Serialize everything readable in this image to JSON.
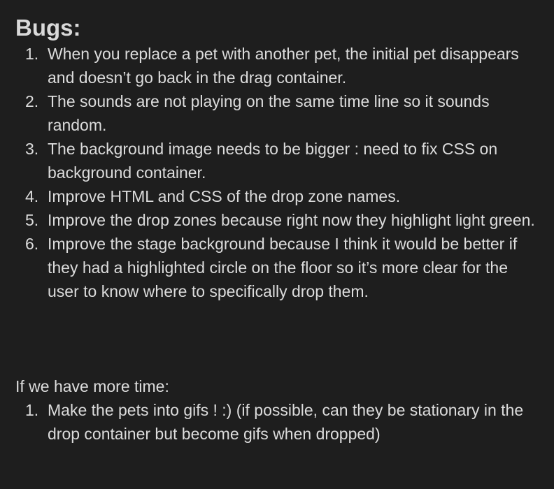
{
  "note": {
    "heading": "Bugs:",
    "bugs": [
      {
        "num": "1.",
        "text": "When you replace a pet with another pet, the initial pet disappears and doesn’t go back in the drag container."
      },
      {
        "num": "2.",
        "text": "The sounds are not playing on the same time line so it sounds random."
      },
      {
        "num": "3.",
        "text": "The background image needs to be bigger : need to fix CSS on background container."
      },
      {
        "num": "4.",
        "text": "Improve HTML and CSS of the drop zone names."
      },
      {
        "num": "5.",
        "text": "Improve the drop zones because right now they highlight light green."
      },
      {
        "num": "6.",
        "text": "Improve the stage background because I think it would be better if they had a highlighted circle on the floor so it’s more clear for the user to know where to specifically drop them."
      }
    ],
    "more_time_heading": "If we have more time:",
    "more_time_items": [
      {
        "num": "1.",
        "text": "Make the pets into gifs ! :) (if possible, can they be stationary in the drop container but become gifs when dropped)"
      }
    ]
  }
}
